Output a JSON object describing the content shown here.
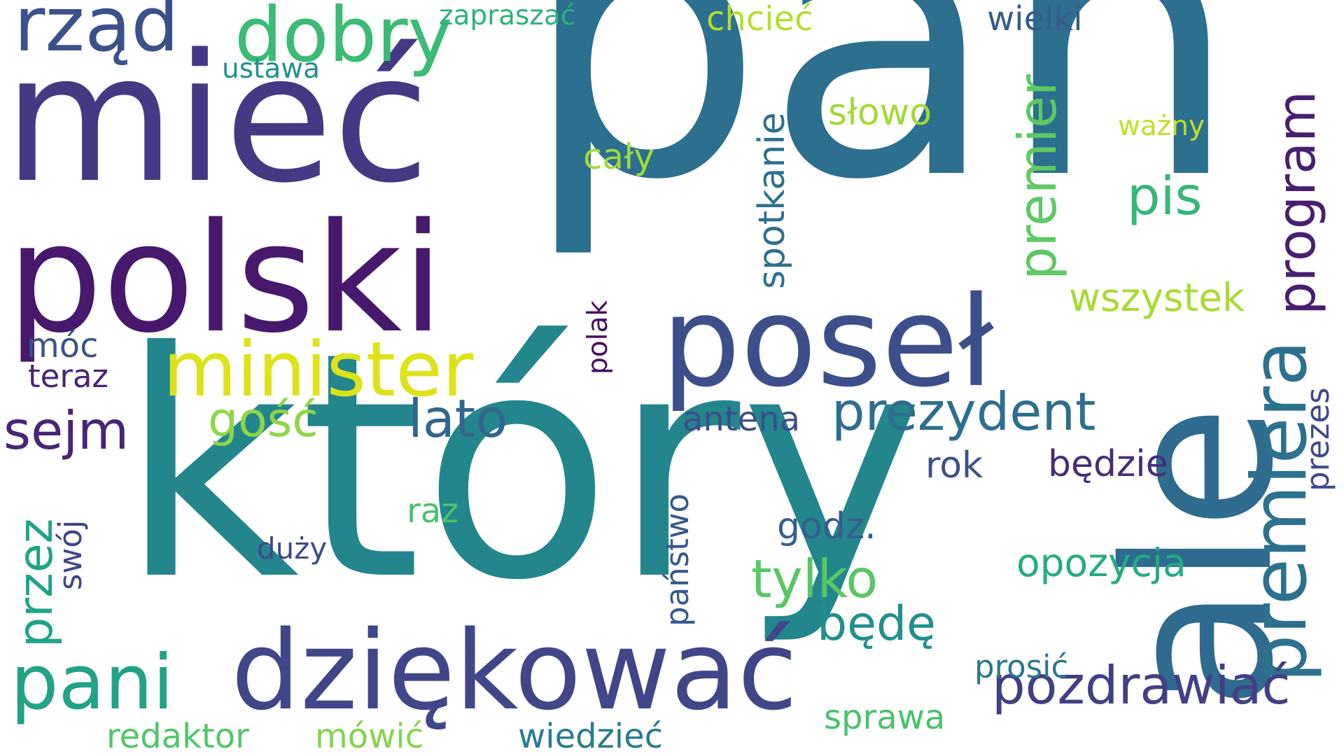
{
  "words": {
    "pan": {
      "text": "pan",
      "color": "#2c6f8e"
    },
    "ktory": {
      "text": "który",
      "color": "#23868c"
    },
    "miec": {
      "text": "mieć",
      "color": "#443a83"
    },
    "polski": {
      "text": "polski",
      "color": "#47186b"
    },
    "posel": {
      "text": "poseł",
      "color": "#3c4f8a"
    },
    "ale": {
      "text": "ale",
      "color": "#2f6b8e"
    },
    "dziekowac": {
      "text": "dziękować",
      "color": "#404688"
    },
    "minister": {
      "text": "minister",
      "color": "#dde318"
    },
    "dobry": {
      "text": "dobry",
      "color": "#3bbb75"
    },
    "rzad": {
      "text": "rząd",
      "color": "#3c508b"
    },
    "premiera": {
      "text": "premiera",
      "color": "#2c718e"
    },
    "pani": {
      "text": "pani",
      "color": "#20a386"
    },
    "pozdrawiac": {
      "text": "pozdrawiać",
      "color": "#423f85"
    },
    "prezydent": {
      "text": "prezydent",
      "color": "#2e6e8e"
    },
    "premier": {
      "text": "premier",
      "color": "#5ec962"
    },
    "program": {
      "text": "program",
      "color": "#481f70"
    },
    "pis": {
      "text": "pis",
      "color": "#35b779"
    },
    "lato": {
      "text": "lato",
      "color": "#31668e"
    },
    "tylko": {
      "text": "tylko",
      "color": "#58c765"
    },
    "sejm": {
      "text": "sejm",
      "color": "#482576"
    },
    "gosc": {
      "text": "gość",
      "color": "#8ed645"
    },
    "przez": {
      "text": "przez",
      "color": "#20a486"
    },
    "bede": {
      "text": "będę",
      "color": "#21908d"
    },
    "wszystek": {
      "text": "wszystek",
      "color": "#a8db34"
    },
    "opozycja": {
      "text": "opozycja",
      "color": "#25ac82"
    },
    "spotkanie": {
      "text": "spotkanie",
      "color": "#2d708e"
    },
    "slowo": {
      "text": "słowo",
      "color": "#a2da37"
    },
    "chciec": {
      "text": "chcieć",
      "color": "#b5de2b"
    },
    "wielki": {
      "text": "wielki",
      "color": "#375b8d"
    },
    "zapraszac": {
      "text": "zapraszać",
      "color": "#2db27d"
    },
    "ustawa": {
      "text": "ustawa",
      "color": "#21918c"
    },
    "wazny": {
      "text": "ważny",
      "color": "#c0df25"
    },
    "caly": {
      "text": "cały",
      "color": "#9fda3a"
    },
    "polak": {
      "text": "polak",
      "color": "#470e61"
    },
    "antena": {
      "text": "antena",
      "color": "#3e4c8a"
    },
    "rok": {
      "text": "rok",
      "color": "#3c4f8a"
    },
    "bedzie": {
      "text": "będzie",
      "color": "#472c7a"
    },
    "prezes": {
      "text": "prezes",
      "color": "#3e4a89"
    },
    "godz": {
      "text": "godz.",
      "color": "#355e8d"
    },
    "raz": {
      "text": "raz",
      "color": "#4ac16d"
    },
    "panstwo": {
      "text": "państwo",
      "color": "#38588c"
    },
    "prosic": {
      "text": "prosić",
      "color": "#2a788e"
    },
    "sprawa": {
      "text": "sprawa",
      "color": "#4ac16d"
    },
    "wiedziec": {
      "text": "wiedzieć",
      "color": "#287c8e"
    },
    "mowic": {
      "text": "mówić",
      "color": "#84d44b"
    },
    "redaktor": {
      "text": "redaktor",
      "color": "#52c569"
    },
    "duzy": {
      "text": "duży",
      "color": "#3e4989"
    },
    "swoj": {
      "text": "swój",
      "color": "#3f4788"
    },
    "moc": {
      "text": "móc",
      "color": "#39558c"
    },
    "teraz": {
      "text": "teraz",
      "color": "#482475"
    }
  }
}
